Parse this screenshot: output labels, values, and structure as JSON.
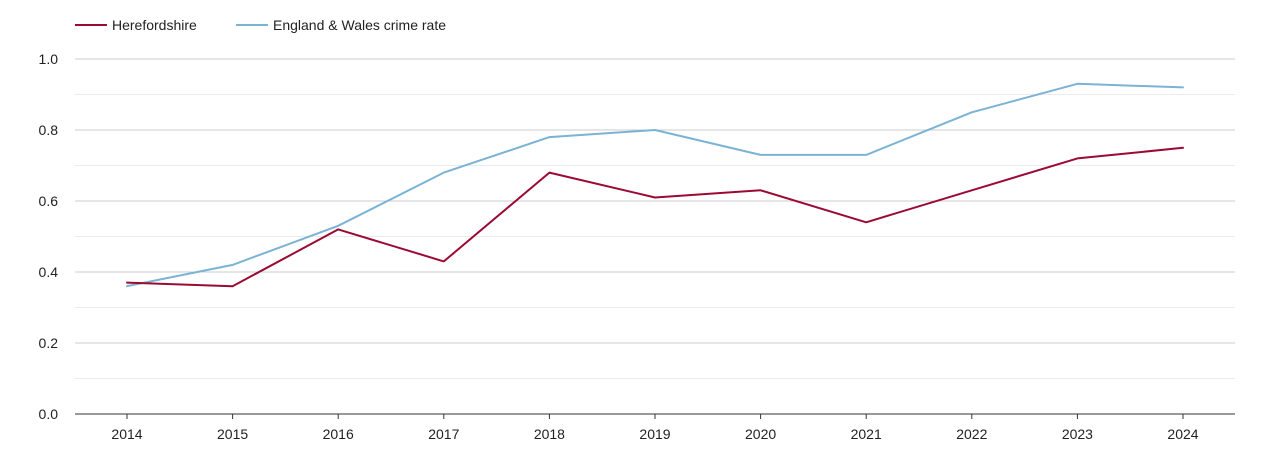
{
  "chart_data": {
    "type": "line",
    "title": "",
    "xlabel": "",
    "ylabel": "",
    "categories": [
      "2014",
      "2015",
      "2016",
      "2017",
      "2018",
      "2019",
      "2020",
      "2021",
      "2022",
      "2023",
      "2024"
    ],
    "ylim": [
      0,
      1.0
    ],
    "yticks": [
      "0.0",
      "0.2",
      "0.4",
      "0.6",
      "0.8",
      "1.0"
    ],
    "grid": true,
    "legend_position": "top-left",
    "series": [
      {
        "name": "Herefordshire",
        "color": "#9b0a32",
        "values": [
          0.37,
          0.36,
          0.52,
          0.43,
          0.68,
          0.61,
          0.63,
          0.54,
          0.63,
          0.72,
          0.75
        ]
      },
      {
        "name": "England & Wales crime rate",
        "color": "#7bb3d4",
        "values": [
          0.36,
          0.42,
          0.53,
          0.68,
          0.78,
          0.8,
          0.73,
          0.73,
          0.85,
          0.93,
          0.92
        ]
      }
    ]
  }
}
